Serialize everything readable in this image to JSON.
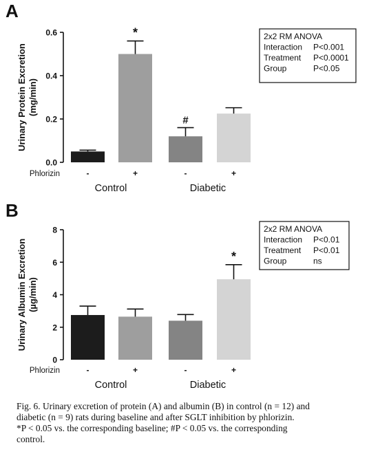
{
  "chart_data": [
    {
      "type": "bar",
      "panel_label": "A",
      "ylabel_line1": "Urinary Protein Excretion",
      "ylabel_line2": "(mg/min)",
      "ylim": [
        0,
        0.6
      ],
      "yticks": [
        "0.0",
        "0.2",
        "0.4",
        "0.6"
      ],
      "yticks_values": [
        0,
        0.2,
        0.4,
        0.6
      ],
      "grid": false,
      "treatment_label": "Phlorizin",
      "bars": [
        {
          "treatment": "-",
          "value": 0.05,
          "error": 0.006,
          "color": "#1c1c1c",
          "annotation": ""
        },
        {
          "treatment": "+",
          "value": 0.5,
          "error": 0.06,
          "color": "#9e9e9e",
          "annotation": "*"
        },
        {
          "treatment": "-",
          "value": 0.12,
          "error": 0.04,
          "color": "#848484",
          "annotation": "#"
        },
        {
          "treatment": "+",
          "value": 0.225,
          "error": 0.027,
          "color": "#d4d4d4",
          "annotation": ""
        }
      ],
      "groups": [
        "Control",
        "Diabetic"
      ],
      "stats_box": {
        "title": "2x2 RM ANOVA",
        "rows": [
          {
            "label": "Interaction",
            "value": "P<0.001"
          },
          {
            "label": "Treatment",
            "value": "P<0.0001"
          },
          {
            "label": "Group",
            "value": "P<0.05"
          }
        ]
      }
    },
    {
      "type": "bar",
      "panel_label": "B",
      "ylabel_line1": "Urinary Albumin Excretion",
      "ylabel_line2": "(µg/min)",
      "ylim": [
        0,
        8
      ],
      "yticks": [
        "0",
        "2",
        "4",
        "6",
        "8"
      ],
      "yticks_values": [
        0,
        2,
        4,
        6,
        8
      ],
      "grid": false,
      "treatment_label": "Phlorizin",
      "bars": [
        {
          "treatment": "-",
          "value": 2.75,
          "error": 0.55,
          "color": "#1c1c1c",
          "annotation": ""
        },
        {
          "treatment": "+",
          "value": 2.65,
          "error": 0.47,
          "color": "#9e9e9e",
          "annotation": ""
        },
        {
          "treatment": "-",
          "value": 2.4,
          "error": 0.38,
          "color": "#848484",
          "annotation": ""
        },
        {
          "treatment": "+",
          "value": 4.95,
          "error": 0.9,
          "color": "#d4d4d4",
          "annotation": "*"
        }
      ],
      "groups": [
        "Control",
        "Diabetic"
      ],
      "stats_box": {
        "title": "2x2 RM ANOVA",
        "rows": [
          {
            "label": "Interaction",
            "value": "P<0.01"
          },
          {
            "label": "Treatment",
            "value": "P<0.01"
          },
          {
            "label": "Group",
            "value": "ns"
          }
        ]
      }
    }
  ],
  "caption": {
    "line1": "Fig. 6. Urinary excretion of protein (A) and albumin (B) in control (n = 12) and",
    "line2": "diabetic (n = 9) rats during baseline and after SGLT inhibition by phlorizin.",
    "line3": "*P < 0.05 vs. the corresponding baseline; #P < 0.05 vs. the corresponding",
    "line4": "control."
  }
}
